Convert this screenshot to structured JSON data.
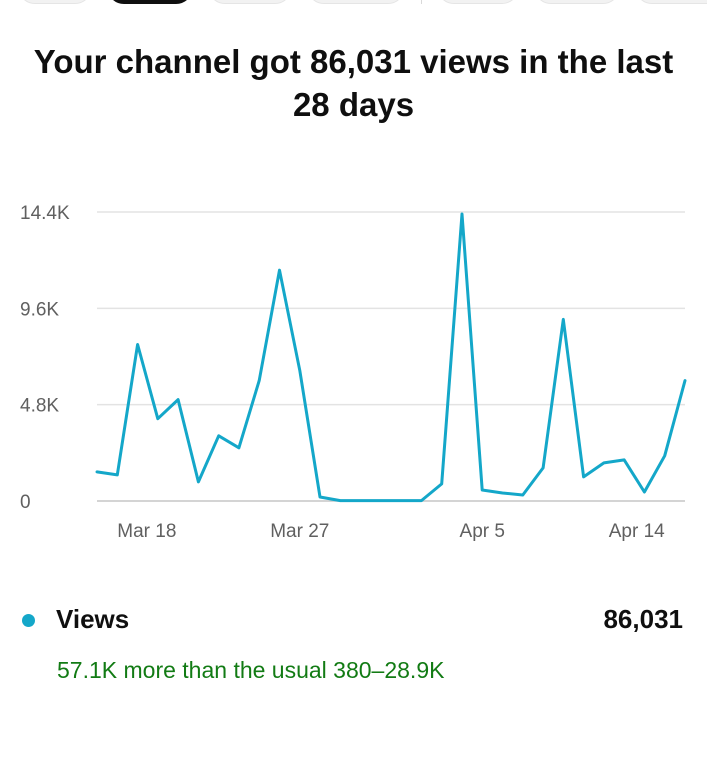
{
  "headline": "Your channel got 86,031 views in the last 28 days",
  "metric": {
    "name": "Views",
    "value": "86,031",
    "comparison": "57.1K more than the usual 380–28.9K",
    "color": "#14a7c9",
    "comparison_color": "#127b14"
  },
  "filter_chips": {
    "count": 7,
    "active_index": 1
  },
  "chart_data": {
    "type": "line",
    "x": [
      "Mar 17",
      "Mar 18",
      "Mar 19",
      "Mar 20",
      "Mar 21",
      "Mar 22",
      "Mar 23",
      "Mar 24",
      "Mar 25",
      "Mar 26",
      "Mar 27",
      "Mar 28",
      "Mar 29",
      "Mar 30",
      "Mar 31",
      "Apr 1",
      "Apr 2",
      "Apr 3",
      "Apr 4",
      "Apr 5",
      "Apr 6",
      "Apr 7",
      "Apr 8",
      "Apr 9",
      "Apr 10",
      "Apr 11",
      "Apr 12",
      "Apr 13",
      "Apr 14",
      "Apr 15"
    ],
    "series": [
      {
        "name": "Views",
        "values": [
          1450,
          1300,
          7800,
          4100,
          5050,
          950,
          3250,
          2650,
          6000,
          11500,
          6500,
          200,
          20,
          20,
          20,
          20,
          20,
          850,
          14300,
          550,
          400,
          300,
          1650,
          9050,
          1200,
          1900,
          2050,
          450,
          2250,
          6000
        ]
      }
    ],
    "xticks": [
      "Mar 18",
      "Mar 27",
      "Apr 5",
      "Apr 14"
    ],
    "yticks": [
      "0",
      "4.8K",
      "9.6K",
      "14.4K"
    ],
    "ytick_values": [
      0,
      4800,
      9600,
      14400
    ],
    "ylim": [
      0,
      14400
    ],
    "grid": true
  }
}
